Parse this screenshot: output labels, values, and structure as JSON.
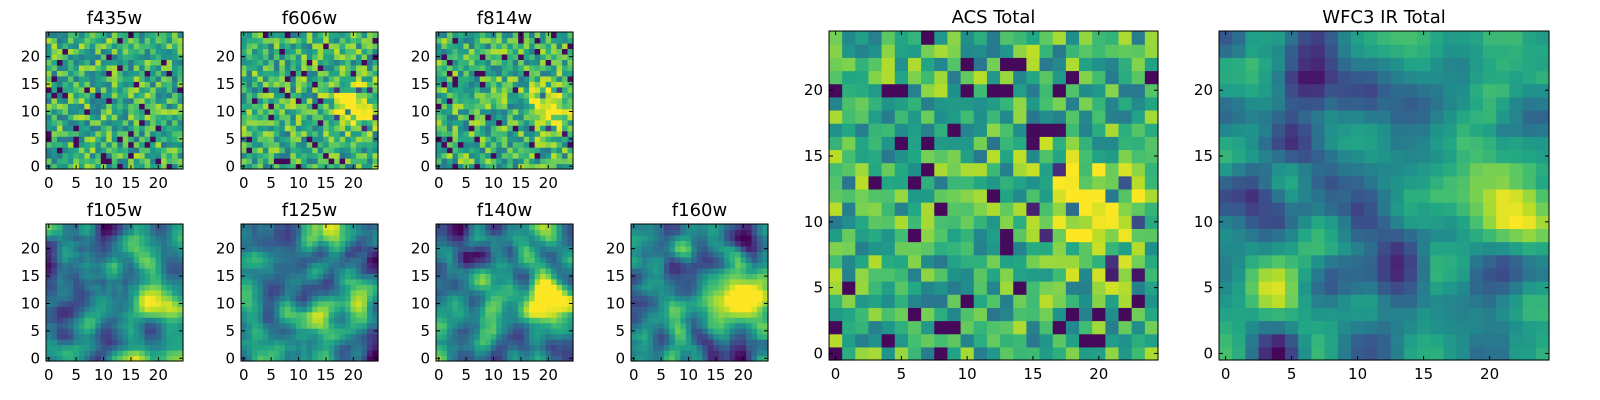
{
  "chart_data": [
    {
      "id": "f435w",
      "type": "heatmap",
      "title": "f435w",
      "grid_size": 25,
      "x_ticks": [
        "0",
        "5",
        "10",
        "15",
        "20"
      ],
      "y_ticks": [
        "0",
        "5",
        "10",
        "15",
        "20"
      ],
      "xlim": [
        0,
        25
      ],
      "ylim": [
        0,
        25
      ],
      "colormap": "viridis",
      "pattern": "noise"
    },
    {
      "id": "f606w",
      "type": "heatmap",
      "title": "f606w",
      "grid_size": 25,
      "x_ticks": [
        "0",
        "5",
        "10",
        "15",
        "20"
      ],
      "y_ticks": [
        "0",
        "5",
        "10",
        "15",
        "20"
      ],
      "xlim": [
        0,
        25
      ],
      "ylim": [
        0,
        25
      ],
      "colormap": "viridis",
      "pattern": "noise+source",
      "source_center": [
        20,
        11
      ]
    },
    {
      "id": "f814w",
      "type": "heatmap",
      "title": "f814w",
      "grid_size": 25,
      "x_ticks": [
        "0",
        "5",
        "10",
        "15",
        "20"
      ],
      "y_ticks": [
        "0",
        "5",
        "10",
        "15",
        "20"
      ],
      "xlim": [
        0,
        25
      ],
      "ylim": [
        0,
        25
      ],
      "colormap": "viridis",
      "pattern": "noise+source",
      "source_center": [
        20,
        11
      ]
    },
    {
      "id": "f105w",
      "type": "heatmap",
      "title": "f105w",
      "grid_size": 25,
      "x_ticks": [
        "0",
        "5",
        "10",
        "15",
        "20"
      ],
      "y_ticks": [
        "0",
        "5",
        "10",
        "15",
        "20"
      ],
      "xlim": [
        0,
        25
      ],
      "ylim": [
        0,
        25
      ],
      "colormap": "viridis",
      "pattern": "smooth+source",
      "source_center": [
        20,
        11
      ]
    },
    {
      "id": "f125w",
      "type": "heatmap",
      "title": "f125w",
      "grid_size": 25,
      "x_ticks": [
        "0",
        "5",
        "10",
        "15",
        "20"
      ],
      "y_ticks": [
        "0",
        "5",
        "10",
        "15",
        "20"
      ],
      "xlim": [
        0,
        25
      ],
      "ylim": [
        0,
        25
      ],
      "colormap": "viridis",
      "pattern": "smooth+source",
      "source_center": [
        21,
        11
      ]
    },
    {
      "id": "f140w",
      "type": "heatmap",
      "title": "f140w",
      "grid_size": 25,
      "x_ticks": [
        "0",
        "5",
        "10",
        "15",
        "20"
      ],
      "y_ticks": [
        "0",
        "5",
        "10",
        "15",
        "20"
      ],
      "xlim": [
        0,
        25
      ],
      "ylim": [
        0,
        25
      ],
      "colormap": "viridis",
      "pattern": "smooth+source",
      "source_center": [
        20,
        11
      ]
    },
    {
      "id": "f160w",
      "type": "heatmap",
      "title": "f160w",
      "grid_size": 25,
      "x_ticks": [
        "0",
        "5",
        "10",
        "15",
        "20"
      ],
      "y_ticks": [
        "0",
        "5",
        "10",
        "15",
        "20"
      ],
      "xlim": [
        0,
        25
      ],
      "ylim": [
        0,
        25
      ],
      "colormap": "viridis",
      "pattern": "smooth+source",
      "source_center": [
        20,
        11
      ]
    },
    {
      "id": "acs-total",
      "type": "heatmap",
      "title": "ACS Total",
      "grid_size": 25,
      "x_ticks": [
        "0",
        "5",
        "10",
        "15",
        "20"
      ],
      "y_ticks": [
        "0",
        "5",
        "10",
        "15",
        "20"
      ],
      "xlim": [
        0,
        25
      ],
      "ylim": [
        0,
        25
      ],
      "colormap": "viridis",
      "pattern": "noise+source",
      "source_center": [
        20,
        11
      ]
    },
    {
      "id": "wfc3-ir-total",
      "type": "heatmap",
      "title": "WFC3 IR Total",
      "grid_size": 25,
      "x_ticks": [
        "0",
        "5",
        "10",
        "15",
        "20"
      ],
      "y_ticks": [
        "0",
        "5",
        "10",
        "15",
        "20"
      ],
      "xlim": [
        0,
        25
      ],
      "ylim": [
        0,
        25
      ],
      "colormap": "viridis",
      "pattern": "smooth+source",
      "source_center": [
        20,
        12
      ]
    }
  ]
}
